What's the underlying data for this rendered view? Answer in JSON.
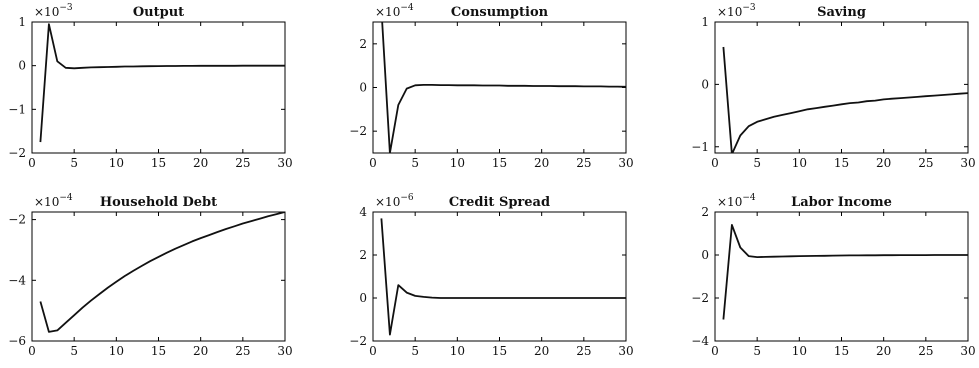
{
  "chart_data": [
    {
      "type": "line",
      "title": "Output",
      "exponent": "−3",
      "x": [
        1,
        2,
        3,
        4,
        5,
        6,
        7,
        8,
        9,
        10,
        11,
        12,
        13,
        14,
        15,
        16,
        17,
        18,
        19,
        20,
        21,
        22,
        23,
        24,
        25,
        26,
        27,
        28,
        29,
        30
      ],
      "y": [
        -1.75,
        0.95,
        0.1,
        -0.05,
        -0.06,
        -0.05,
        -0.04,
        -0.035,
        -0.03,
        -0.025,
        -0.02,
        -0.018,
        -0.015,
        -0.012,
        -0.01,
        -0.008,
        -0.007,
        -0.006,
        -0.005,
        -0.004,
        -0.003,
        -0.003,
        -0.002,
        -0.002,
        -0.001,
        -0.001,
        -0.001,
        0,
        0,
        0
      ],
      "xlim": [
        0,
        30
      ],
      "ylim": [
        -2,
        1
      ],
      "xticks": [
        "0",
        "5",
        "10",
        "15",
        "20",
        "25",
        "30"
      ],
      "yticks": [
        -2,
        -1,
        0,
        1
      ],
      "ytick_labels": [
        "−2",
        "−1",
        "0",
        "1"
      ]
    },
    {
      "type": "line",
      "title": "Consumption",
      "exponent": "−4",
      "x": [
        1,
        2,
        3,
        4,
        5,
        6,
        7,
        8,
        9,
        10,
        11,
        12,
        13,
        14,
        15,
        16,
        17,
        18,
        19,
        20,
        21,
        22,
        23,
        24,
        25,
        26,
        27,
        28,
        29,
        30
      ],
      "y": [
        3.6,
        -3.0,
        -0.8,
        -0.05,
        0.1,
        0.12,
        0.12,
        0.11,
        0.11,
        0.1,
        0.1,
        0.1,
        0.09,
        0.09,
        0.09,
        0.08,
        0.08,
        0.08,
        0.07,
        0.07,
        0.07,
        0.06,
        0.06,
        0.06,
        0.05,
        0.05,
        0.05,
        0.04,
        0.04,
        0.03
      ],
      "xlim": [
        0,
        30
      ],
      "ylim": [
        -3,
        3
      ],
      "xticks": [
        "0",
        "5",
        "10",
        "15",
        "20",
        "25",
        "30"
      ],
      "yticks": [
        -2,
        0,
        2
      ],
      "ytick_labels": [
        "−2",
        "0",
        "2"
      ]
    },
    {
      "type": "line",
      "title": "Saving",
      "exponent": "−3",
      "x": [
        1,
        2,
        3,
        4,
        5,
        6,
        7,
        8,
        9,
        10,
        11,
        12,
        13,
        14,
        15,
        16,
        17,
        18,
        19,
        20,
        21,
        22,
        23,
        24,
        25,
        26,
        27,
        28,
        29,
        30
      ],
      "y": [
        0.6,
        -1.12,
        -0.82,
        -0.67,
        -0.6,
        -0.56,
        -0.52,
        -0.49,
        -0.46,
        -0.43,
        -0.4,
        -0.38,
        -0.36,
        -0.34,
        -0.32,
        -0.3,
        -0.29,
        -0.27,
        -0.26,
        -0.24,
        -0.23,
        -0.22,
        -0.21,
        -0.2,
        -0.19,
        -0.18,
        -0.17,
        -0.16,
        -0.15,
        -0.14
      ],
      "xlim": [
        0,
        30
      ],
      "ylim": [
        -1.1,
        1
      ],
      "xticks": [
        "0",
        "5",
        "10",
        "15",
        "20",
        "25",
        "30"
      ],
      "yticks": [
        -1,
        0,
        1
      ],
      "ytick_labels": [
        "−1",
        "0",
        "1"
      ]
    },
    {
      "type": "line",
      "title": "Household Debt",
      "exponent": "−4",
      "x": [
        1,
        2,
        3,
        4,
        5,
        6,
        7,
        8,
        9,
        10,
        11,
        12,
        13,
        14,
        15,
        16,
        17,
        18,
        19,
        20,
        21,
        22,
        23,
        24,
        25,
        26,
        27,
        28,
        29,
        30
      ],
      "y": [
        -4.7,
        -5.7,
        -5.65,
        -5.4,
        -5.15,
        -4.9,
        -4.67,
        -4.45,
        -4.24,
        -4.05,
        -3.86,
        -3.69,
        -3.53,
        -3.37,
        -3.23,
        -3.09,
        -2.96,
        -2.84,
        -2.72,
        -2.61,
        -2.51,
        -2.41,
        -2.31,
        -2.22,
        -2.13,
        -2.05,
        -1.97,
        -1.89,
        -1.82,
        -1.75
      ],
      "xlim": [
        0,
        30
      ],
      "ylim": [
        -6,
        -1.75
      ],
      "xticks": [
        "0",
        "5",
        "10",
        "15",
        "20",
        "25",
        "30"
      ],
      "yticks": [
        -6,
        -4,
        -2
      ],
      "ytick_labels": [
        "−6",
        "−4",
        "−2"
      ]
    },
    {
      "type": "line",
      "title": "Credit Spread",
      "exponent": "−6",
      "x": [
        1,
        2,
        3,
        4,
        5,
        6,
        7,
        8,
        9,
        10,
        11,
        12,
        13,
        14,
        15,
        16,
        17,
        18,
        19,
        20,
        21,
        22,
        23,
        24,
        25,
        26,
        27,
        28,
        29,
        30
      ],
      "y": [
        3.7,
        -1.7,
        0.6,
        0.25,
        0.1,
        0.05,
        0.02,
        0,
        0,
        0,
        0,
        0,
        0,
        0,
        0,
        0,
        0,
        0,
        0,
        0,
        0,
        0,
        0,
        0,
        0,
        0,
        0,
        0,
        0,
        0
      ],
      "xlim": [
        0,
        30
      ],
      "ylim": [
        -2,
        4
      ],
      "xticks": [
        "0",
        "5",
        "10",
        "15",
        "20",
        "25",
        "30"
      ],
      "yticks": [
        -2,
        0,
        2,
        4
      ],
      "ytick_labels": [
        "−2",
        "0",
        "2",
        "4"
      ]
    },
    {
      "type": "line",
      "title": "Labor Income",
      "exponent": "−4",
      "x": [
        1,
        2,
        3,
        4,
        5,
        6,
        7,
        8,
        9,
        10,
        11,
        12,
        13,
        14,
        15,
        16,
        17,
        18,
        19,
        20,
        21,
        22,
        23,
        24,
        25,
        26,
        27,
        28,
        29,
        30
      ],
      "y": [
        -3.0,
        1.4,
        0.35,
        -0.05,
        -0.1,
        -0.09,
        -0.08,
        -0.07,
        -0.06,
        -0.05,
        -0.045,
        -0.04,
        -0.035,
        -0.03,
        -0.025,
        -0.02,
        -0.018,
        -0.015,
        -0.012,
        -0.01,
        -0.008,
        -0.006,
        -0.005,
        -0.004,
        -0.003,
        -0.002,
        -0.002,
        -0.001,
        -0.001,
        0
      ],
      "xlim": [
        0,
        30
      ],
      "ylim": [
        -4,
        2
      ],
      "xticks": [
        "0",
        "5",
        "10",
        "15",
        "20",
        "25",
        "30"
      ],
      "yticks": [
        -4,
        -2,
        0,
        2
      ],
      "ytick_labels": [
        "−4",
        "−2",
        "0",
        "2"
      ]
    }
  ]
}
